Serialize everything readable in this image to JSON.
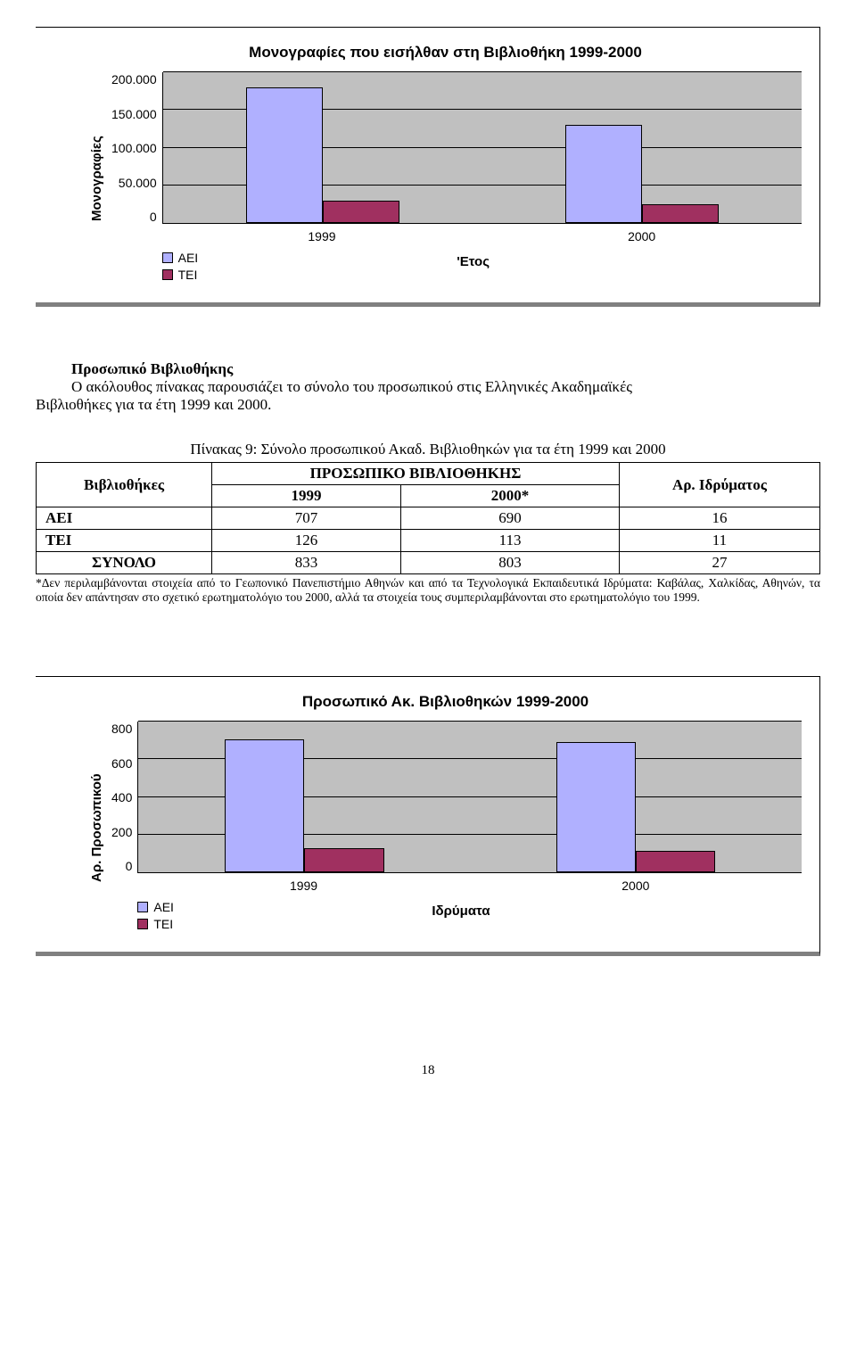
{
  "chart1": {
    "type": "bar",
    "title": "Μονογραφίες που εισήλθαν στη Βιβλιοθήκη 1999-2000",
    "y_label": "Μονογραφίες",
    "x_label": "'Ετος",
    "y_ticks": [
      "200.000",
      "150.000",
      "100.000",
      "50.000",
      "0"
    ],
    "y_max": 200000,
    "categories": [
      "1999",
      "2000"
    ],
    "series": [
      {
        "name": "ΑΕΙ",
        "color": "#b0b0ff",
        "values": [
          180000,
          130000
        ]
      },
      {
        "name": "ΤΕΙ",
        "color": "#a03060",
        "values": [
          30000,
          25000
        ]
      }
    ],
    "plot_bg": "#c0c0c0",
    "grid_color": "#000000",
    "bar_width_pct": 12
  },
  "section": {
    "heading_indent": "Προσωπικό Βιβλιοθήκης",
    "text_inline": "Ο ακόλουθος πίνακας παρουσιάζει το σύνολο του προσωπικού στις Ελληνικές Ακαδημαϊκές",
    "text_line2": "Βιβλιοθήκες για τα έτη 1999 και 2000."
  },
  "table": {
    "caption": "Πίνακας 9:  Σύνολο προσωπικού Ακαδ. Βιβλιοθηκών για τα έτη 1999 και 2000",
    "col_group_label": "ΠΡΟΣΩΠΙΚΟ ΒΙΒΛΙΟΘΗΚΗΣ",
    "col1_label": "Βιβλιοθήκες",
    "col_years": [
      "1999",
      "2000*"
    ],
    "col_last": "Αρ. Ιδρύματος",
    "rows": [
      {
        "label": "ΑΕΙ",
        "v1": "707",
        "v2": "690",
        "v3": "16"
      },
      {
        "label": "ΤΕΙ",
        "v1": "126",
        "v2": "113",
        "v3": "11"
      },
      {
        "label": "ΣΥΝΟΛΟ",
        "v1": "833",
        "v2": "803",
        "v3": "27"
      }
    ],
    "footnote": "*Δεν περιλαμβάνονται στοιχεία από το Γεωπονικό Πανεπιστήμιο Αθηνών και από τα Τεχνολογικά Εκπαιδευτικά Ιδρύματα: Καβάλας, Χαλκίδας, Αθηνών, τα οποία δεν απάντησαν στο σχετικό ερωτηματολόγιο του 2000, αλλά τα στοιχεία τους συμπεριλαμβάνονται στο ερωτηματολόγιο του 1999."
  },
  "chart2": {
    "type": "bar",
    "title": "Προσωπικό Ακ. Βιβλιοθηκών 1999-2000",
    "y_label": "Αρ. Προσωπικού",
    "x_label": "Ιδρύματα",
    "y_ticks": [
      "800",
      "600",
      "400",
      "200",
      "0"
    ],
    "y_max": 800,
    "categories": [
      "1999",
      "2000"
    ],
    "series": [
      {
        "name": "ΑΕΙ",
        "color": "#b0b0ff",
        "values": [
          707,
          690
        ]
      },
      {
        "name": "ΤΕΙ",
        "color": "#a03060",
        "values": [
          126,
          113
        ]
      }
    ],
    "plot_bg": "#c0c0c0",
    "grid_color": "#000000",
    "bar_width_pct": 12
  },
  "page_number": "18"
}
